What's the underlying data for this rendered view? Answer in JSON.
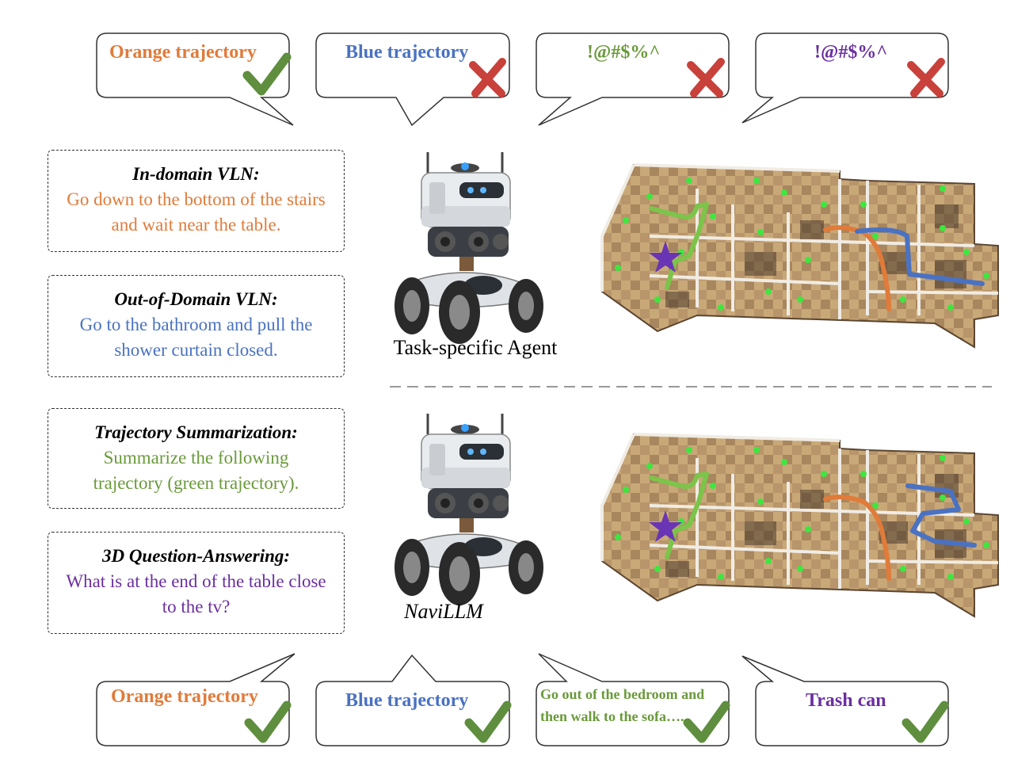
{
  "colors": {
    "orange": "#E07B3A",
    "blue": "#4A72C2",
    "green": "#6A9A3A",
    "purple": "#6B2FA0",
    "check": "#5E8E3E",
    "cross": "#C8413A",
    "star": "#6A35B5"
  },
  "top_bubbles": [
    {
      "text": "Orange trajectory",
      "color": "orange",
      "mark": "check-icon"
    },
    {
      "text": "Blue trajectory",
      "color": "blue",
      "mark": "cross-icon"
    },
    {
      "text": "!@#$%^",
      "color": "green",
      "mark": "cross-icon"
    },
    {
      "text": "!@#$%^",
      "color": "purple",
      "mark": "cross-icon"
    }
  ],
  "bottom_bubbles": [
    {
      "text": "Orange trajectory",
      "color": "orange",
      "mark": "check-icon"
    },
    {
      "text": "Blue trajectory",
      "color": "blue",
      "mark": "check-icon"
    },
    {
      "text": "Go out of the bedroom and then walk to the sofa….",
      "color": "green",
      "mark": "check-icon"
    },
    {
      "text": "Trash can",
      "color": "purple",
      "mark": "check-icon"
    }
  ],
  "tasks": [
    {
      "title": "In-domain VLN:",
      "body": "Go down to the bottom of the stairs and wait near the table.",
      "color": "orange"
    },
    {
      "title": "Out-of-Domain VLN:",
      "body": "Go to the bathroom and pull the shower curtain closed.",
      "color": "blue"
    },
    {
      "title": "Trajectory Summarization:",
      "body": "Summarize the following trajectory (green trajectory).",
      "color": "green"
    },
    {
      "title": "3D Question-Answering:",
      "body": "What is at the end of the table close to the tv?",
      "color": "purple"
    }
  ],
  "agents": {
    "top_label": "Task-specific Agent",
    "bottom_label": "NaviLLM"
  },
  "icons": {
    "robot": "robot-icon",
    "scene": "house-floorplan-image",
    "target": "star-icon"
  }
}
